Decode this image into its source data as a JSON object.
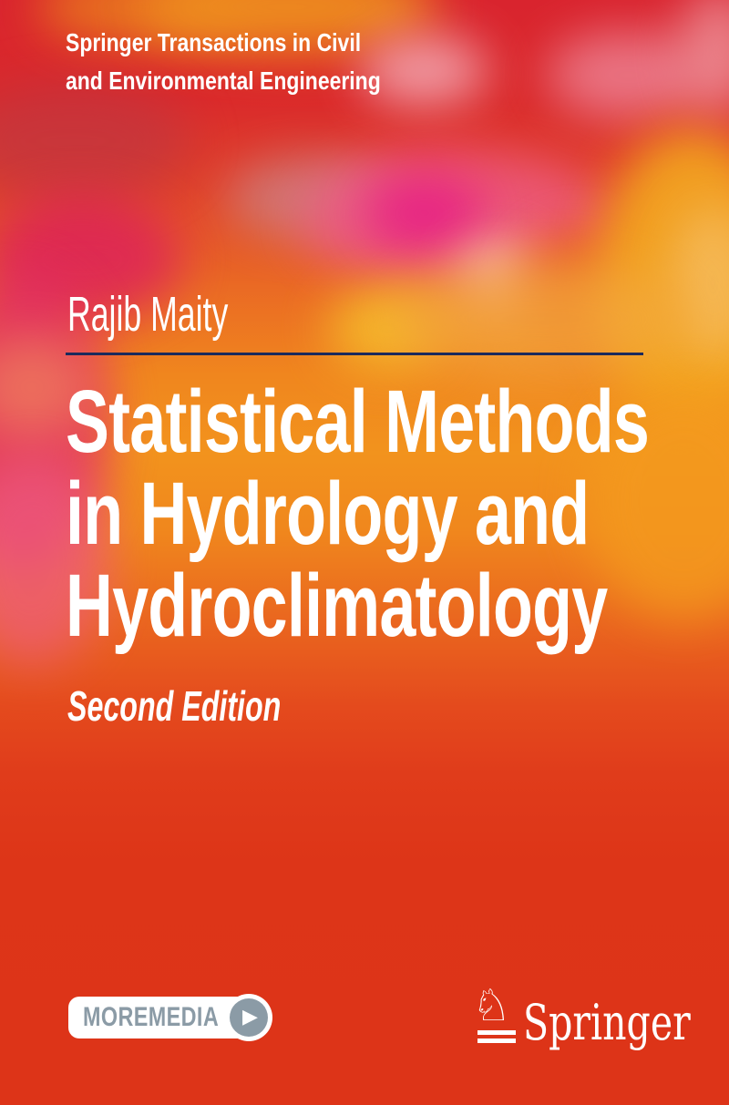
{
  "series": {
    "name_line1": "Springer Transactions in Civil",
    "name_line2": "and Environmental Engineering"
  },
  "book": {
    "author": "Rajib Maity",
    "title_line1": "Statistical Methods",
    "title_line2": "in Hydrology and",
    "title_line3": "Hydroclimatology",
    "edition": "Second Edition"
  },
  "badges": {
    "moremedia_label": "MOREMEDIA"
  },
  "publisher": {
    "name": "Springer"
  },
  "icons": {
    "play": "▶",
    "springer_horse": "♘"
  },
  "colors": {
    "top_red": "#d9242e",
    "middle_orange": "#f2931d",
    "bottom_red": "#dd3418",
    "magenta_accent": "#e71f86",
    "pink_accent": "#ee5b88",
    "light_pink_accent": "#f3a8b2",
    "yellow_accent": "#f6c12c",
    "divider_navy": "#1b2a5c",
    "moremedia_gray": "#8b9ba6",
    "text_white": "#ffffff"
  }
}
